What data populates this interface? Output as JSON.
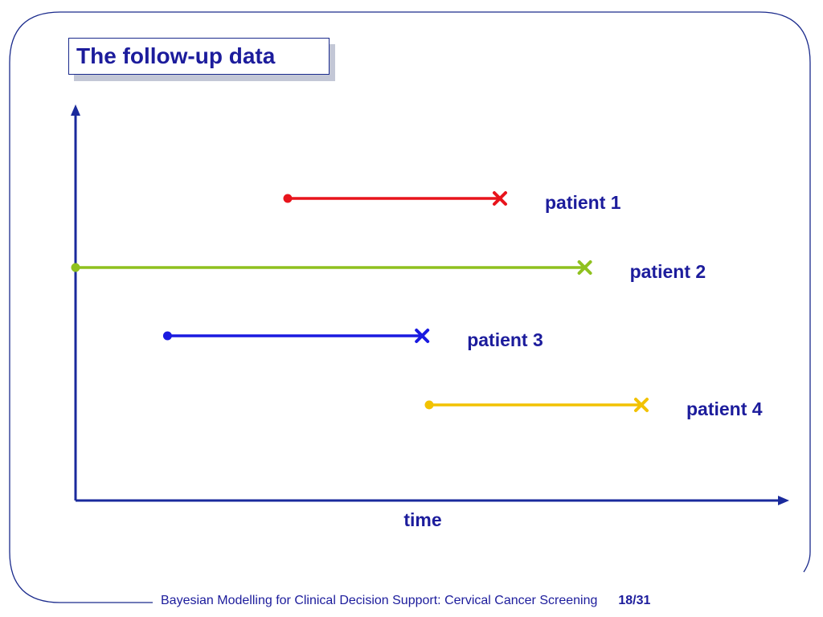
{
  "slide": {
    "title": "The follow-up data",
    "footer_text": "Bayesian Modelling for Clinical Decision Support: Cervical Cancer Screening",
    "page": "18/31"
  },
  "diagram": {
    "axis_label": "time",
    "axis_color": "#1a2a9c",
    "patients": [
      {
        "label": "patient 1",
        "start": 0.3,
        "end": 0.6,
        "color": "#e8141c"
      },
      {
        "label": "patient 2",
        "start": 0.0,
        "end": 0.72,
        "color": "#8fc11e"
      },
      {
        "label": "patient 3",
        "start": 0.13,
        "end": 0.49,
        "color": "#1a1ae0"
      },
      {
        "label": "patient 4",
        "start": 0.5,
        "end": 0.8,
        "color": "#f2c200"
      }
    ],
    "start_marker": "dot",
    "end_marker": "cross",
    "label_color": "#1c1c9c"
  }
}
